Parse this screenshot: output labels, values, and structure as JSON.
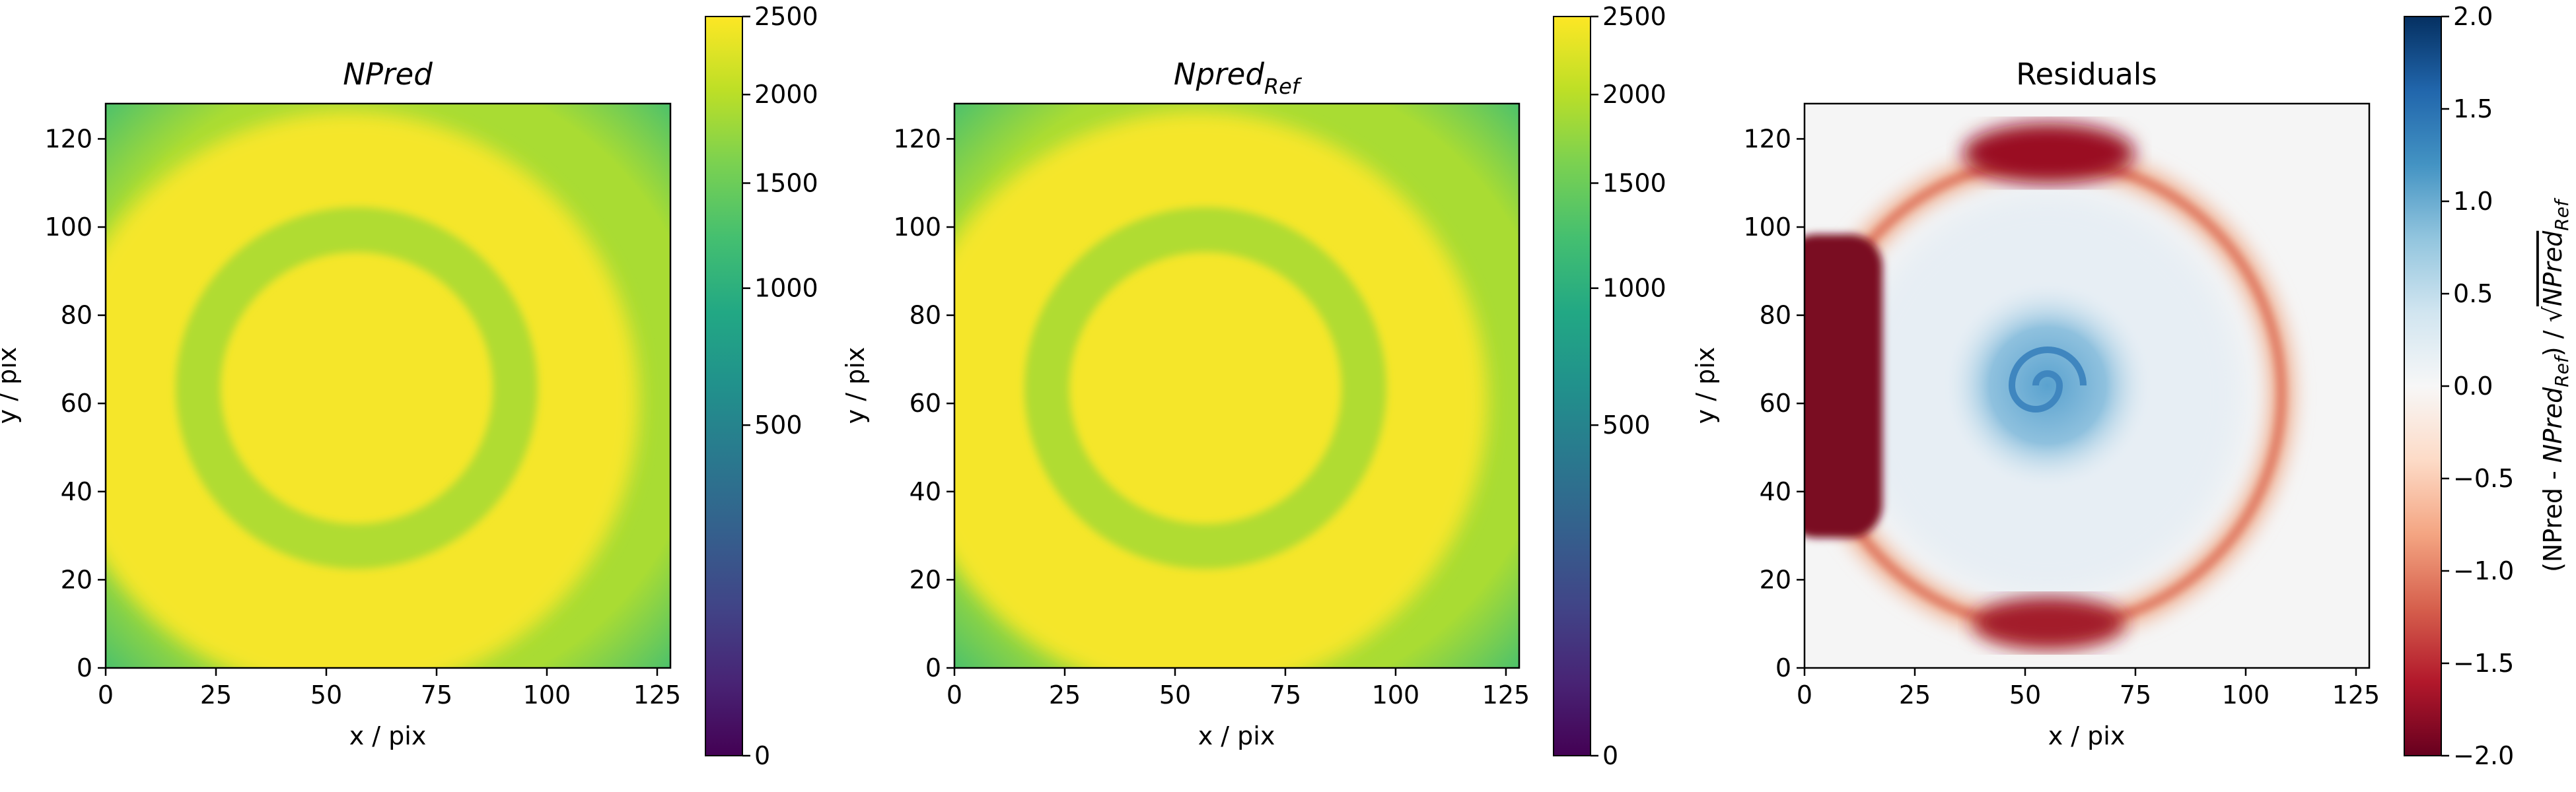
{
  "chart_data": [
    {
      "type": "heatmap",
      "title": "NPred",
      "xlabel": "x / pix",
      "ylabel": "y / pix",
      "xlim": [
        0,
        128
      ],
      "ylim": [
        0,
        128
      ],
      "xticks": [
        "0",
        "25",
        "50",
        "75",
        "100",
        "125"
      ],
      "yticks": [
        "0",
        "20",
        "40",
        "60",
        "80",
        "100",
        "120"
      ],
      "colormap": "viridis",
      "color_scale": "sqrt",
      "colorbar_range": [
        0,
        2500
      ],
      "colorbar_ticks": [
        "0",
        "500",
        "1000",
        "1500",
        "2000",
        "2500"
      ],
      "features": {
        "outer_disc": {
          "center": [
            55,
            60
          ],
          "radius": 66,
          "value": 2500
        },
        "ring": {
          "center": [
            57,
            63
          ],
          "radius": 36,
          "width": 10,
          "value": 1500
        },
        "corners_value": 1100
      }
    },
    {
      "type": "heatmap",
      "title": "Npred",
      "title_subscript": "Ref",
      "xlabel": "x / pix",
      "ylabel": "y / pix",
      "xlim": [
        0,
        128
      ],
      "ylim": [
        0,
        128
      ],
      "xticks": [
        "0",
        "25",
        "50",
        "75",
        "100",
        "125"
      ],
      "yticks": [
        "0",
        "20",
        "40",
        "60",
        "80",
        "100",
        "120"
      ],
      "colormap": "viridis",
      "color_scale": "sqrt",
      "colorbar_range": [
        0,
        2500
      ],
      "colorbar_ticks": [
        "0",
        "500",
        "1000",
        "1500",
        "2000",
        "2500"
      ],
      "features": {
        "outer_disc": {
          "center": [
            55,
            60
          ],
          "radius": 66,
          "value": 2500
        },
        "ring": {
          "center": [
            57,
            63
          ],
          "radius": 36,
          "width": 10,
          "value": 1500
        },
        "corners_value": 1100
      }
    },
    {
      "type": "heatmap",
      "title": "Residuals",
      "xlabel": "x / pix",
      "ylabel": "y / pix",
      "xlim": [
        0,
        128
      ],
      "ylim": [
        0,
        128
      ],
      "xticks": [
        "0",
        "25",
        "50",
        "75",
        "100",
        "125"
      ],
      "yticks": [
        "0",
        "20",
        "40",
        "60",
        "80",
        "100",
        "120"
      ],
      "colormap": "RdBu",
      "colorbar_range": [
        -2.0,
        2.0
      ],
      "colorbar_ticks": [
        "2.0",
        "1.5",
        "1.0",
        "0.5",
        "0.0",
        "−0.5",
        "−1.0",
        "−1.5",
        "−2.0"
      ],
      "colorbar_label_prefix": "(NPred - ",
      "colorbar_label_ref": "NPred",
      "colorbar_label_sub": "Ref",
      "colorbar_label_middle": ") / √",
      "features": {
        "left_block": {
          "x": [
            0,
            17
          ],
          "y": [
            30,
            97
          ],
          "value": -2.0
        },
        "top_blob": {
          "center": [
            55,
            117
          ],
          "value": -1.8
        },
        "bottom_blob": {
          "center": [
            55,
            10
          ],
          "value": -1.8
        },
        "ring_boundary": {
          "center": [
            55,
            62
          ],
          "radius": 53,
          "value": -0.6
        },
        "center_spiral": {
          "center": [
            55,
            64
          ],
          "radius": 20,
          "value": 0.7
        }
      }
    }
  ]
}
